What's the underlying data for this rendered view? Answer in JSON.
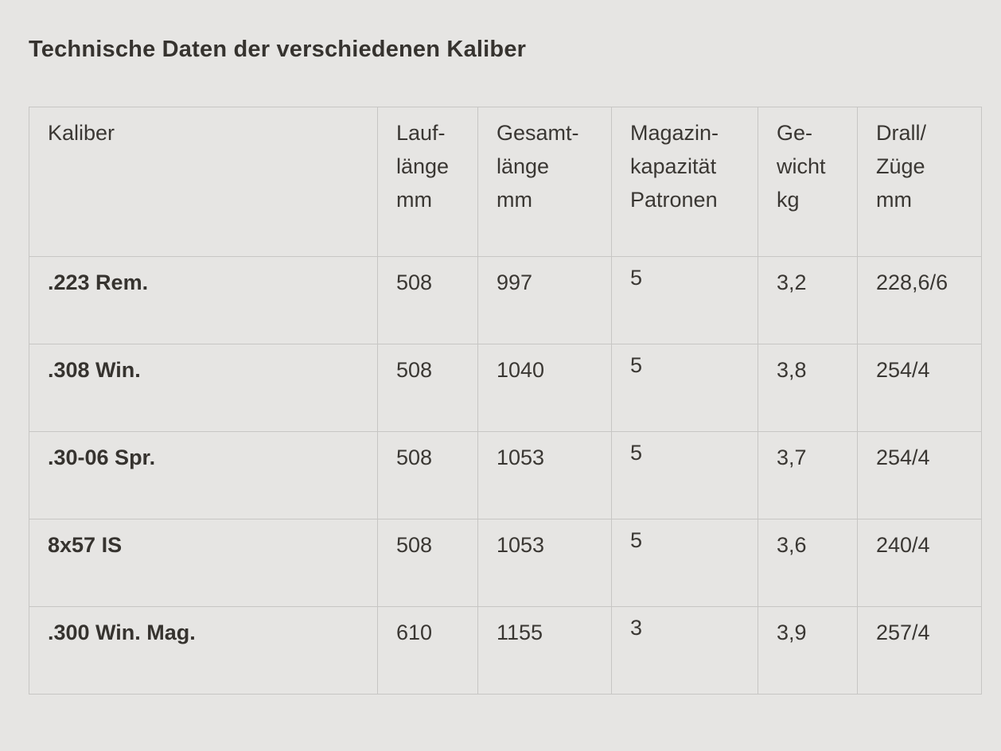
{
  "page": {
    "title": "Technische Daten der verschiedenen Kaliber",
    "background_color": "#e6e5e3",
    "border_color": "#c7c6c4",
    "text_color": "#3a3733"
  },
  "table": {
    "headers": [
      {
        "label": "Kaliber"
      },
      {
        "label": "Lauf-\nlänge\nmm"
      },
      {
        "label": "Gesamt-\nlänge\nmm"
      },
      {
        "label": "Magazin-\nkapazität\nPatronen"
      },
      {
        "label": "Ge-\nwicht\nkg"
      },
      {
        "label": "Drall/\nZüge\nmm"
      }
    ],
    "fields": [
      "kaliber",
      "lauflaenge",
      "gesamtlaenge",
      "magazin",
      "gewicht",
      "drall"
    ],
    "rows": [
      {
        "kaliber": ".223 Rem.",
        "lauflaenge": "508",
        "gesamtlaenge": "997",
        "magazin": "5",
        "gewicht": "3,2",
        "drall": "228,6/6"
      },
      {
        "kaliber": ".308 Win.",
        "lauflaenge": "508",
        "gesamtlaenge": "1040",
        "magazin": "5",
        "gewicht": "3,8",
        "drall": "254/4"
      },
      {
        "kaliber": ".30-06 Spr.",
        "lauflaenge": "508",
        "gesamtlaenge": "1053",
        "magazin": "5",
        "gewicht": "3,7",
        "drall": "254/4"
      },
      {
        "kaliber": "8x57 IS",
        "lauflaenge": "508",
        "gesamtlaenge": "1053",
        "magazin": "5",
        "gewicht": "3,6",
        "drall": "240/4"
      },
      {
        "kaliber": ".300 Win. Mag.",
        "lauflaenge": "610",
        "gesamtlaenge": "1155",
        "magazin": "3",
        "gewicht": "3,9",
        "drall": "257/4"
      }
    ]
  }
}
